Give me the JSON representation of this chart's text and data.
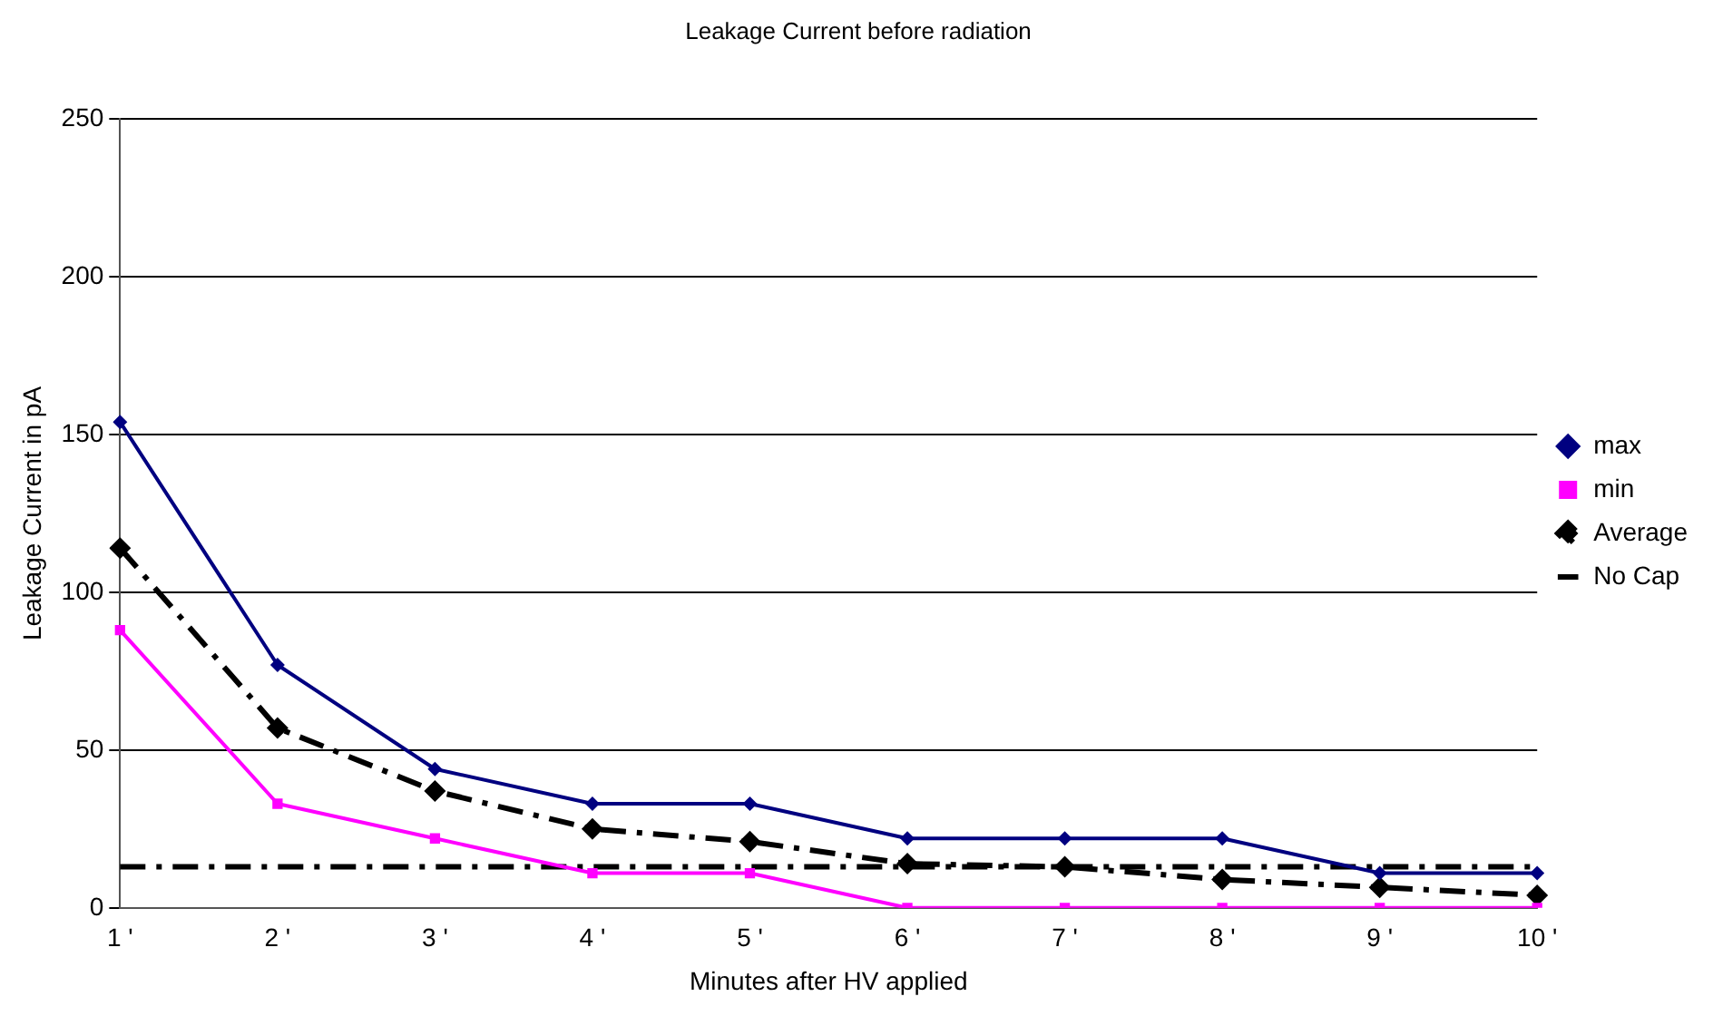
{
  "chart_data": {
    "type": "line",
    "title": "Leakage Current before radiation",
    "xlabel": "Minutes after HV applied",
    "ylabel": "Leakage Current in pA",
    "categories": [
      "1 '",
      "2 '",
      "3 '",
      "4 '",
      "5 '",
      "6 '",
      "7 '",
      "8 '",
      "9 '",
      "10 '"
    ],
    "series": [
      {
        "name": "max",
        "color": "#000080",
        "marker": "diamond",
        "line_style": "solid",
        "values": [
          154,
          77,
          44,
          33,
          33,
          22,
          22,
          22,
          11,
          11
        ]
      },
      {
        "name": "min",
        "color": "#ff00ff",
        "marker": "square",
        "line_style": "solid",
        "values": [
          88,
          33,
          22,
          11,
          11,
          0,
          0,
          0,
          0,
          0
        ]
      },
      {
        "name": "Average",
        "color": "#000000",
        "marker": "diamond",
        "line_style": "dashed",
        "values": [
          114,
          57,
          37,
          25,
          21,
          14,
          13,
          9,
          6.5,
          4
        ]
      },
      {
        "name": "No Cap",
        "color": "#000000",
        "marker": "none",
        "line_style": "dashed",
        "values": [
          13,
          13,
          13,
          13,
          13,
          13,
          13,
          13,
          13,
          13
        ]
      }
    ],
    "ylim": [
      0,
      250
    ],
    "yticks": [
      0,
      50,
      100,
      150,
      200,
      250
    ],
    "grid": "y",
    "legend": "right"
  }
}
